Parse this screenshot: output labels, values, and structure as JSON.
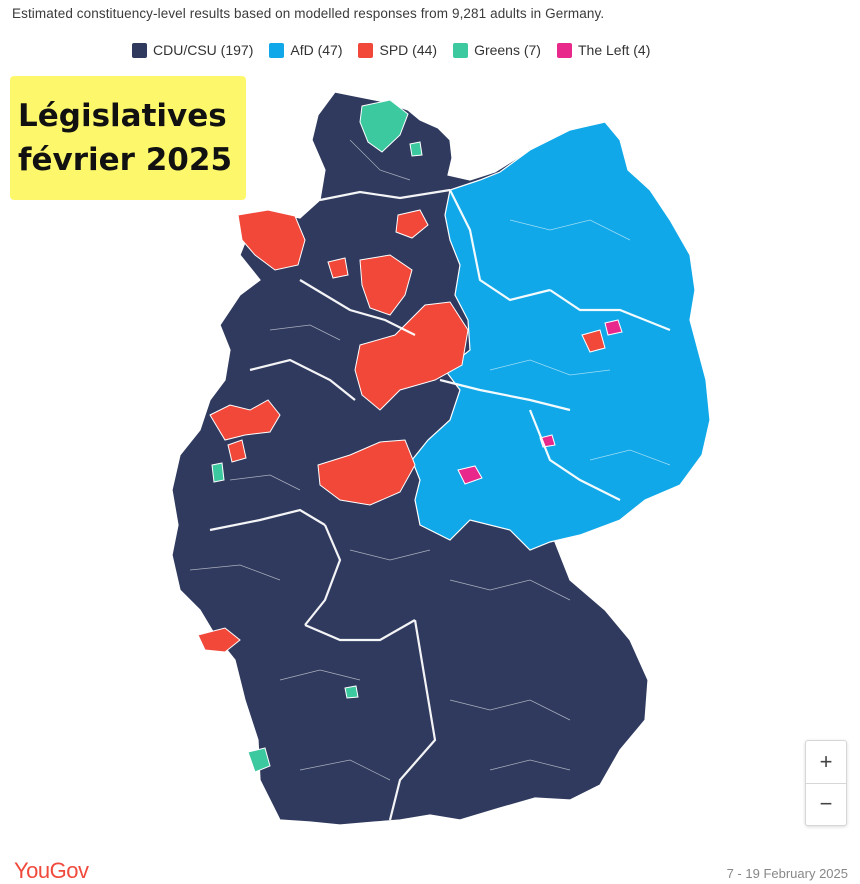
{
  "header": {
    "subtitle": "Estimated constituency-level results based on modelled responses from 9,281 adults in Germany."
  },
  "legend": [
    {
      "label": "CDU/CSU (197)",
      "color": "#2f3a5e"
    },
    {
      "label": "AfD (47)",
      "color": "#10a8e8"
    },
    {
      "label": "SPD (44)",
      "color": "#f2483a"
    },
    {
      "label": "Greens (7)",
      "color": "#3dc9a0"
    },
    {
      "label": "The Left (4)",
      "color": "#e8288a"
    }
  ],
  "overlay": {
    "line1": "Législatives",
    "line2": "février 2025"
  },
  "map": {
    "colors": {
      "cdu": "#2f3a5e",
      "afd": "#10a8e8",
      "spd": "#f2483a",
      "greens": "#3dc9a0",
      "left": "#e8288a",
      "border": "#ffffff"
    }
  },
  "zoom": {
    "plus": "+",
    "minus": "−"
  },
  "footer": {
    "brand": "YouGov",
    "date": "7 - 19 February 2025"
  }
}
